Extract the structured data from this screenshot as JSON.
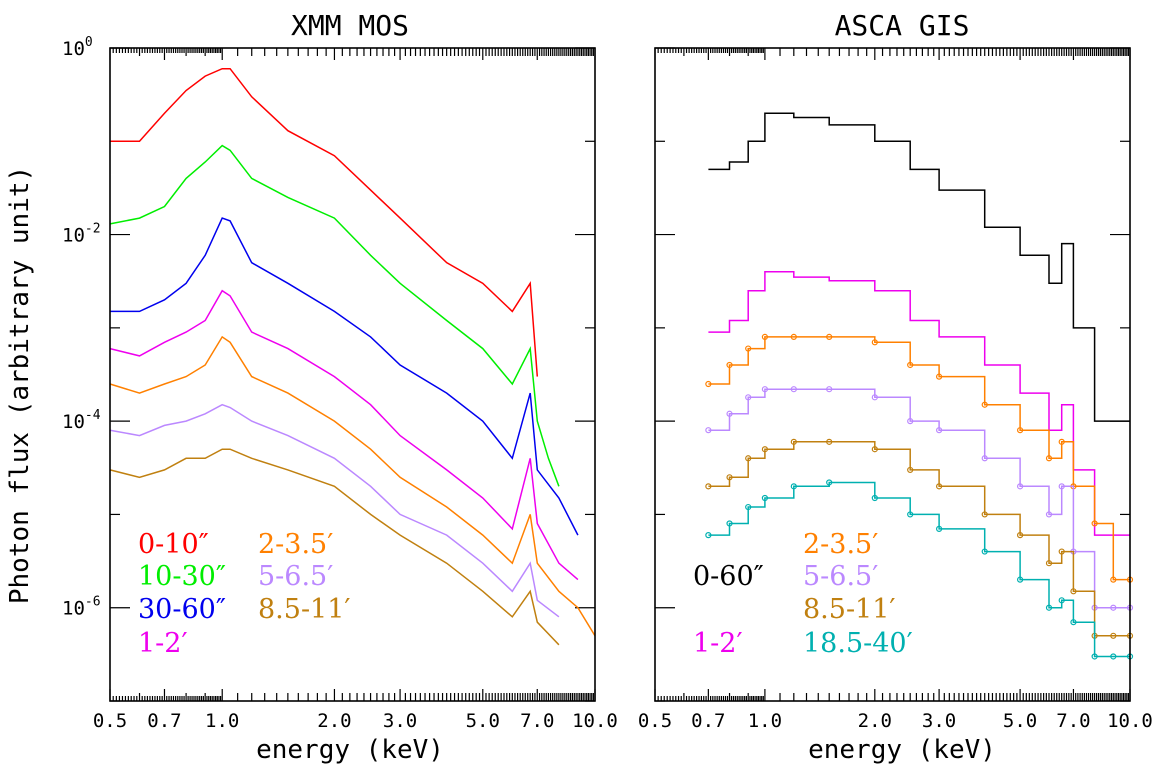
{
  "chart_data": [
    {
      "type": "line",
      "title": "XMM MOS",
      "xlabel": "energy (keV)",
      "ylabel": "Photon flux (arbitrary unit)",
      "xscale": "log",
      "yscale": "log",
      "xlim": [
        0.5,
        10.0
      ],
      "ylim": [
        1e-07,
        1.0
      ],
      "xticks": [
        "0.5",
        "0.7",
        "1.0",
        "2.0",
        "3.0",
        "5.0",
        "7.0",
        "10.0"
      ],
      "yticks": [
        {
          "base": "10",
          "exp": "0"
        },
        {
          "base": "10",
          "exp": "-2"
        },
        {
          "base": "10",
          "exp": "-4"
        },
        {
          "base": "10",
          "exp": "-6"
        }
      ],
      "legend_placement": "bottom-left",
      "series": [
        {
          "name": "0-10″",
          "color": "#ff0000",
          "x": [
            0.5,
            0.6,
            0.7,
            0.8,
            0.9,
            1.0,
            1.05,
            1.2,
            1.5,
            2.0,
            2.5,
            3.0,
            4.0,
            5.0,
            6.0,
            6.7,
            7.0
          ],
          "y": [
            0.1,
            0.1,
            0.2,
            0.35,
            0.5,
            0.6,
            0.6,
            0.3,
            0.13,
            0.07,
            0.03,
            0.015,
            0.005,
            0.003,
            0.0015,
            0.003,
            0.0003
          ]
        },
        {
          "name": "10-30″",
          "color": "#00ee00",
          "x": [
            0.5,
            0.6,
            0.7,
            0.8,
            0.9,
            1.0,
            1.05,
            1.2,
            1.5,
            2.0,
            2.5,
            3.0,
            4.0,
            5.0,
            6.0,
            6.7,
            7.0,
            7.5,
            8.0
          ],
          "y": [
            0.013,
            0.015,
            0.02,
            0.04,
            0.06,
            0.09,
            0.08,
            0.04,
            0.025,
            0.015,
            0.006,
            0.003,
            0.0012,
            0.0006,
            0.00025,
            0.0006,
            0.0001,
            4e-05,
            2e-05
          ]
        },
        {
          "name": "30-60″",
          "color": "#0000ee",
          "x": [
            0.5,
            0.6,
            0.7,
            0.8,
            0.9,
            1.0,
            1.05,
            1.2,
            1.5,
            2.0,
            2.5,
            3.0,
            4.0,
            5.0,
            6.0,
            6.7,
            7.0,
            8.0,
            9.0
          ],
          "y": [
            0.0015,
            0.0015,
            0.002,
            0.003,
            0.006,
            0.015,
            0.014,
            0.005,
            0.003,
            0.0015,
            0.0008,
            0.0004,
            0.0002,
            0.0001,
            4e-05,
            0.0002,
            3e-05,
            1.5e-05,
            6e-06
          ]
        },
        {
          "name": "1-2′",
          "color": "#ee00ee",
          "x": [
            0.5,
            0.6,
            0.7,
            0.8,
            0.9,
            1.0,
            1.05,
            1.2,
            1.5,
            2.0,
            2.5,
            3.0,
            4.0,
            5.0,
            6.0,
            6.7,
            7.0,
            8.0,
            9.0
          ],
          "y": [
            0.0006,
            0.0005,
            0.0007,
            0.0009,
            0.0012,
            0.0025,
            0.0022,
            0.0009,
            0.0006,
            0.0003,
            0.00015,
            7e-05,
            3e-05,
            1.5e-05,
            7e-06,
            4e-05,
            8e-06,
            3e-06,
            2e-06
          ]
        },
        {
          "name": "2-3.5′",
          "color": "#ff8000",
          "x": [
            0.5,
            0.6,
            0.7,
            0.8,
            0.9,
            1.0,
            1.05,
            1.2,
            1.5,
            2.0,
            2.5,
            3.0,
            4.0,
            5.0,
            6.0,
            6.7,
            7.0,
            8.0,
            9.0,
            10.0
          ],
          "y": [
            0.00025,
            0.0002,
            0.00025,
            0.0003,
            0.0004,
            0.0008,
            0.0007,
            0.0003,
            0.0002,
            0.0001,
            5e-05,
            2.5e-05,
            1.2e-05,
            6e-06,
            3e-06,
            1e-05,
            3e-06,
            1.5e-06,
            1e-06,
            5e-07
          ]
        },
        {
          "name": "5-6.5′",
          "color": "#bb88ff",
          "x": [
            0.5,
            0.6,
            0.7,
            0.8,
            0.9,
            1.0,
            1.05,
            1.2,
            1.5,
            2.0,
            2.5,
            3.0,
            4.0,
            5.0,
            6.0,
            6.7,
            7.0,
            8.0
          ],
          "y": [
            8e-05,
            7e-05,
            9e-05,
            0.0001,
            0.00012,
            0.00015,
            0.00014,
            0.0001,
            7e-05,
            4e-05,
            2e-05,
            1e-05,
            6e-06,
            3e-06,
            1.5e-06,
            3e-06,
            1.2e-06,
            8e-07
          ]
        },
        {
          "name": "8.5-11′",
          "color": "#c08010",
          "x": [
            0.5,
            0.6,
            0.7,
            0.8,
            0.9,
            1.0,
            1.05,
            1.2,
            1.5,
            2.0,
            2.5,
            3.0,
            4.0,
            5.0,
            6.0,
            6.7,
            7.0,
            8.0
          ],
          "y": [
            3e-05,
            2.5e-05,
            3e-05,
            4e-05,
            4e-05,
            5e-05,
            5e-05,
            4e-05,
            3e-05,
            2e-05,
            1e-05,
            6e-06,
            3e-06,
            1.5e-06,
            8e-07,
            1.5e-06,
            7e-07,
            4e-07
          ]
        }
      ],
      "legend": [
        {
          "label": "0-10″",
          "color": "#ff0000",
          "col": 0,
          "row": 0
        },
        {
          "label": "10-30″",
          "color": "#00ee00",
          "col": 0,
          "row": 1
        },
        {
          "label": "30-60″",
          "color": "#0000ee",
          "col": 0,
          "row": 2
        },
        {
          "label": "1-2′",
          "color": "#ee00ee",
          "col": 0,
          "row": 3
        },
        {
          "label": "2-3.5′",
          "color": "#ff8000",
          "col": 1,
          "row": 0
        },
        {
          "label": "5-6.5′",
          "color": "#bb88ff",
          "col": 1,
          "row": 1
        },
        {
          "label": "8.5-11′",
          "color": "#c08010",
          "col": 1,
          "row": 2
        }
      ]
    },
    {
      "type": "line",
      "title": "ASCA GIS",
      "xlabel": "energy (keV)",
      "ylabel": "",
      "xscale": "log",
      "yscale": "log",
      "xlim": [
        0.5,
        10.0
      ],
      "ylim": [
        1e-07,
        1.0
      ],
      "xticks": [
        "0.5",
        "0.7",
        "1.0",
        "2.0",
        "3.0",
        "5.0",
        "7.0",
        "10.0"
      ],
      "legend_placement": "bottom",
      "series": [
        {
          "name": "0-60″",
          "color": "#000000",
          "x": [
            0.7,
            0.8,
            0.9,
            1.0,
            1.2,
            1.5,
            2.0,
            2.5,
            3.0,
            4.0,
            5.0,
            6.0,
            6.5,
            7.0,
            8.0,
            9.0,
            10.0
          ],
          "y": [
            0.05,
            0.06,
            0.1,
            0.2,
            0.18,
            0.15,
            0.1,
            0.05,
            0.03,
            0.012,
            0.006,
            0.003,
            0.008,
            0.001,
            0.0001,
            0.0001,
            0.0001
          ]
        },
        {
          "name": "1-2′",
          "color": "#ee00ee",
          "x": [
            0.7,
            0.8,
            0.9,
            1.0,
            1.2,
            1.5,
            2.0,
            2.5,
            3.0,
            4.0,
            5.0,
            6.0,
            6.5,
            7.0,
            8.0,
            9.0,
            10.0
          ],
          "y": [
            0.0009,
            0.0012,
            0.0025,
            0.004,
            0.0035,
            0.0032,
            0.0025,
            0.0012,
            0.0008,
            0.0004,
            0.0002,
            8e-05,
            0.00015,
            3e-05,
            6e-06,
            6e-06,
            6e-06
          ]
        },
        {
          "name": "2-3.5′",
          "color": "#ff8000",
          "x": [
            0.7,
            0.8,
            0.9,
            1.0,
            1.2,
            1.5,
            2.0,
            2.5,
            3.0,
            4.0,
            5.0,
            6.0,
            6.5,
            7.0,
            8.0,
            9.0,
            10.0
          ],
          "y": [
            0.00025,
            0.0004,
            0.0006,
            0.0008,
            0.0008,
            0.0008,
            0.0007,
            0.0004,
            0.0003,
            0.00015,
            8e-05,
            4e-05,
            6e-05,
            2e-05,
            8e-06,
            2e-06,
            2e-06
          ]
        },
        {
          "name": "5-6.5′",
          "color": "#bb88ff",
          "x": [
            0.7,
            0.8,
            0.9,
            1.0,
            1.2,
            1.5,
            2.0,
            2.5,
            3.0,
            4.0,
            5.0,
            6.0,
            6.5,
            7.0,
            8.0,
            9.0,
            10.0
          ],
          "y": [
            8e-05,
            0.00012,
            0.00018,
            0.00022,
            0.00022,
            0.00022,
            0.00018,
            0.0001,
            8e-05,
            4e-05,
            2e-05,
            1e-05,
            2e-05,
            4e-06,
            1e-06,
            1e-06,
            1e-06
          ]
        },
        {
          "name": "8.5-11′",
          "color": "#c08010",
          "x": [
            0.7,
            0.8,
            0.9,
            1.0,
            1.2,
            1.5,
            2.0,
            2.5,
            3.0,
            4.0,
            5.0,
            6.0,
            6.5,
            7.0,
            8.0,
            9.0,
            10.0
          ],
          "y": [
            2e-05,
            2.5e-05,
            4e-05,
            5e-05,
            6e-05,
            6e-05,
            5e-05,
            3e-05,
            2e-05,
            1e-05,
            6e-06,
            3e-06,
            4e-06,
            1.5e-06,
            5e-07,
            5e-07,
            5e-07
          ]
        },
        {
          "name": "18.5-40′",
          "color": "#00b0b0",
          "x": [
            0.7,
            0.8,
            0.9,
            1.0,
            1.2,
            1.5,
            2.0,
            2.5,
            3.0,
            4.0,
            5.0,
            6.0,
            6.5,
            7.0,
            8.0,
            9.0,
            10.0
          ],
          "y": [
            6e-06,
            8e-06,
            1.2e-05,
            1.5e-05,
            2e-05,
            2.2e-05,
            1.5e-05,
            1e-05,
            7e-06,
            4e-06,
            2e-06,
            1e-06,
            1.2e-06,
            7e-07,
            3e-07,
            3e-07,
            3e-07
          ]
        }
      ],
      "legend": [
        {
          "label": "0-60″",
          "color": "#000000",
          "col": 0,
          "row": 1
        },
        {
          "label": "1-2′",
          "color": "#ee00ee",
          "col": 0,
          "row": 3
        },
        {
          "label": "2-3.5′",
          "color": "#ff8000",
          "col": 1,
          "row": 0
        },
        {
          "label": "5-6.5′",
          "color": "#bb88ff",
          "col": 1,
          "row": 1
        },
        {
          "label": "8.5-11′",
          "color": "#c08010",
          "col": 1,
          "row": 2
        },
        {
          "label": "18.5-40′",
          "color": "#00b0b0",
          "col": 1,
          "row": 3
        }
      ]
    }
  ]
}
